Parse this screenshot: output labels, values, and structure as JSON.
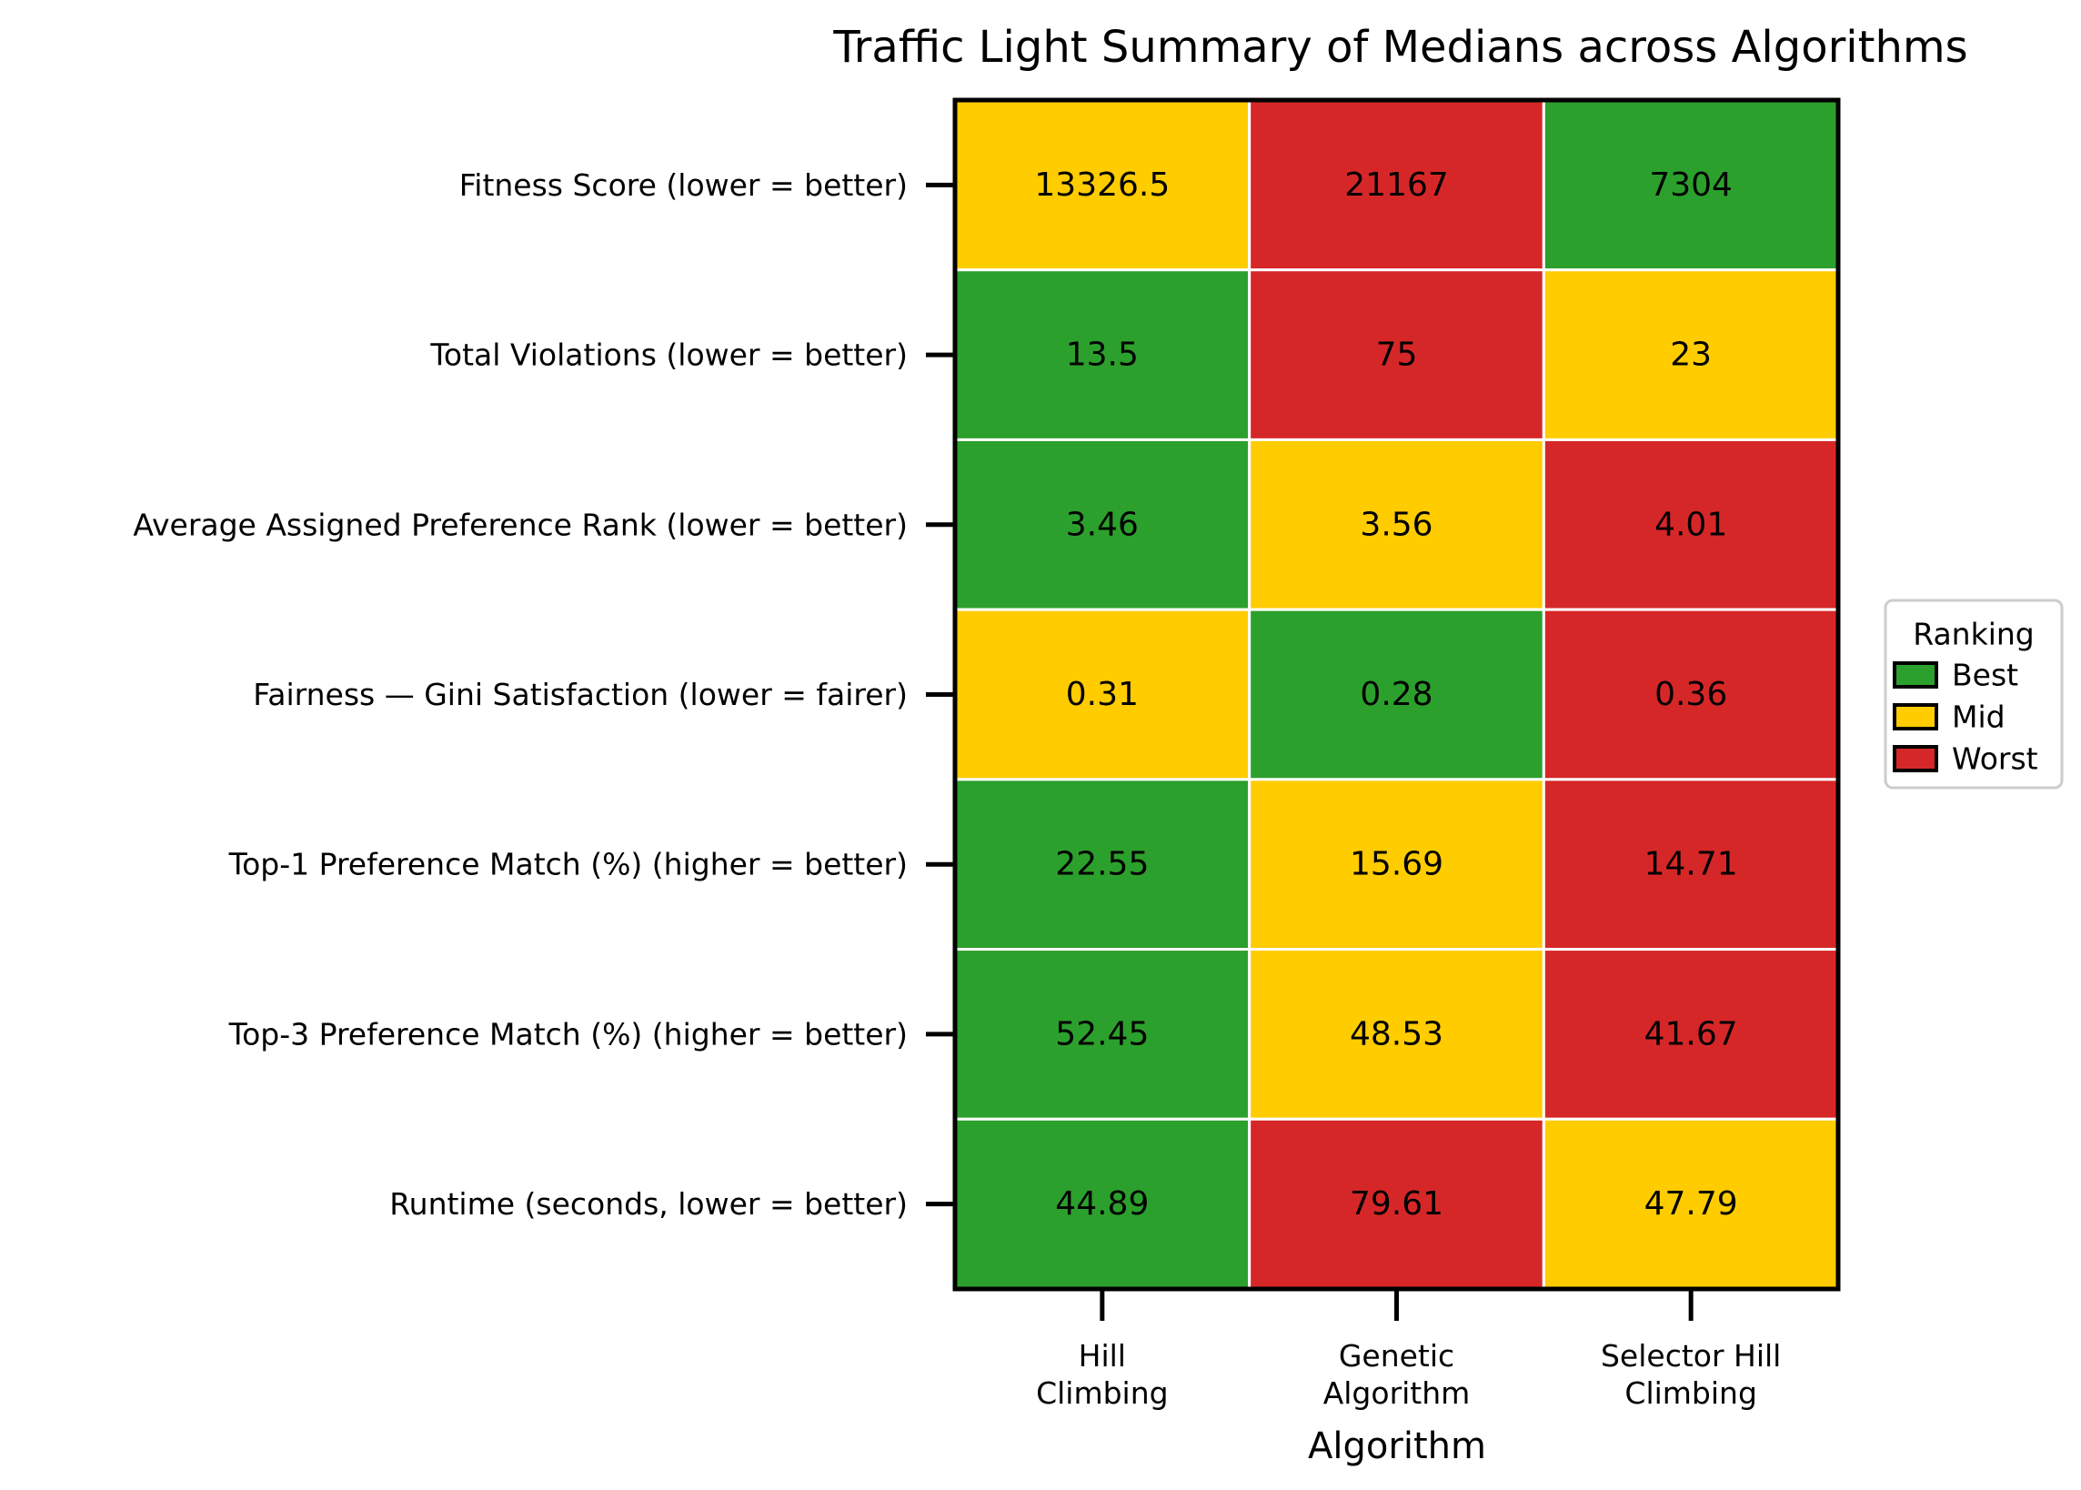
{
  "chart_data": {
    "type": "heatmap",
    "title": "Traffic Light Summary of Medians across Algorithms",
    "xlabel": "Algorithm",
    "ylabel": "",
    "columns": [
      [
        "Hill",
        "Climbing"
      ],
      [
        "Genetic",
        "Algorithm"
      ],
      [
        "Selector Hill",
        "Climbing"
      ]
    ],
    "rows": [
      {
        "label": "Fitness Score (lower = better)",
        "values": [
          "13326.5",
          "21167",
          "7304"
        ],
        "ranks": [
          "Mid",
          "Worst",
          "Best"
        ]
      },
      {
        "label": "Total Violations (lower = better)",
        "values": [
          "13.5",
          "75",
          "23"
        ],
        "ranks": [
          "Best",
          "Worst",
          "Mid"
        ]
      },
      {
        "label": "Average Assigned Preference Rank (lower = better)",
        "values": [
          "3.46",
          "3.56",
          "4.01"
        ],
        "ranks": [
          "Best",
          "Mid",
          "Worst"
        ]
      },
      {
        "label": "Fairness — Gini Satisfaction (lower = fairer)",
        "values": [
          "0.31",
          "0.28",
          "0.36"
        ],
        "ranks": [
          "Mid",
          "Best",
          "Worst"
        ]
      },
      {
        "label": "Top-1 Preference Match (%) (higher = better)",
        "values": [
          "22.55",
          "15.69",
          "14.71"
        ],
        "ranks": [
          "Best",
          "Mid",
          "Worst"
        ]
      },
      {
        "label": "Top-3 Preference Match (%) (higher = better)",
        "values": [
          "52.45",
          "48.53",
          "41.67"
        ],
        "ranks": [
          "Best",
          "Mid",
          "Worst"
        ]
      },
      {
        "label": "Runtime (seconds, lower = better)",
        "values": [
          "44.89",
          "79.61",
          "47.79"
        ],
        "ranks": [
          "Best",
          "Worst",
          "Mid"
        ]
      }
    ],
    "legend": {
      "title": "Ranking",
      "placement": "right",
      "items": [
        {
          "label": "Best",
          "color": "#2ca02c"
        },
        {
          "label": "Mid",
          "color": "#ffcc00"
        },
        {
          "label": "Worst",
          "color": "#d62728"
        }
      ]
    }
  }
}
